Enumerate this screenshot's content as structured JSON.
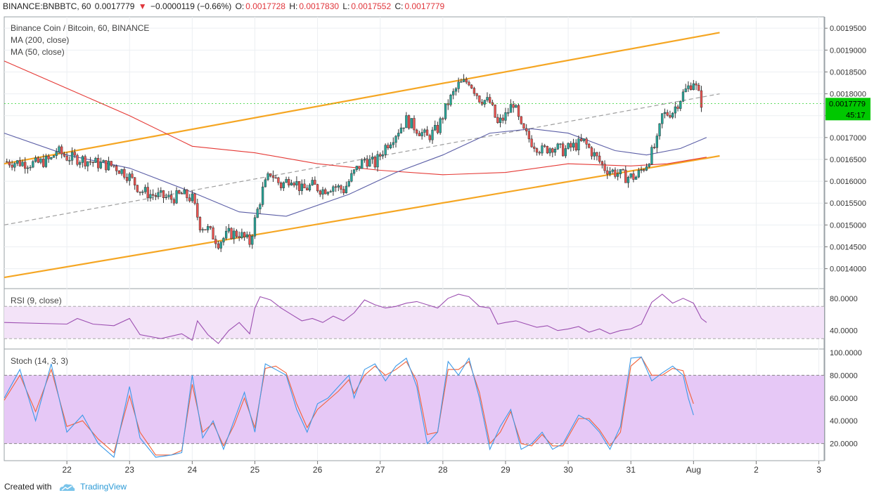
{
  "header": {
    "symbol": "BINANCE:BNBBTC, 60",
    "last": "0.0017779",
    "change": "−0.0000119 (−0.66%)",
    "o_label": "O:",
    "o": "0.0017728",
    "h_label": "H:",
    "h": "0.0017830",
    "l_label": "L:",
    "l": "0.0017552",
    "c_label": "C:",
    "c": "0.0017779"
  },
  "legend": {
    "title": "Binance Coin / Bitcoin, 60, BINANCE",
    "ma200": "MA (200, close)",
    "ma50": "MA (50, close)",
    "rsi": "RSI (9, close)",
    "stoch": "Stoch (14, 3, 3)"
  },
  "price_badge": {
    "value": "0.0017779",
    "countdown": "45:17"
  },
  "footer": {
    "created": "Created with",
    "brand": "TradingView"
  },
  "colors": {
    "up": "#26a69a",
    "down": "#ef5350",
    "ma200": "#e53935",
    "ma50": "#5b5ea6",
    "channel": "#f5a623",
    "rsi": "#9c4fb1",
    "stoch_k": "#3d9ae8",
    "stoch_d": "#f2623a",
    "last_price": "#00c800"
  },
  "chart_data": {
    "type": "candlestick",
    "x_ticks": [
      {
        "label": "22",
        "t": 0
      },
      {
        "label": "23",
        "t": 24
      },
      {
        "label": "24",
        "t": 48
      },
      {
        "label": "25",
        "t": 72
      },
      {
        "label": "26",
        "t": 96
      },
      {
        "label": "27",
        "t": 120
      },
      {
        "label": "28",
        "t": 144
      },
      {
        "label": "29",
        "t": 168
      },
      {
        "label": "30",
        "t": 192
      },
      {
        "label": "31",
        "t": 216
      },
      {
        "label": "Aug",
        "t": 240
      },
      {
        "label": "2",
        "t": 264
      },
      {
        "label": "3",
        "t": 288
      }
    ],
    "x_range": [
      -24,
      290
    ],
    "price": {
      "ylim": [
        0.001356,
        0.001976
      ],
      "ticks": [
        "0.0014000",
        "0.0014500",
        "0.0015000",
        "0.0015500",
        "0.0016000",
        "0.0016500",
        "0.0017000",
        "0.0017500",
        "0.0018000",
        "0.0018500",
        "0.0019000",
        "0.0019500"
      ],
      "last": 0.0017779,
      "close_path": [
        [
          -24,
          0.001645
        ],
        [
          -12,
          0.00164
        ],
        [
          -6,
          0.00165
        ],
        [
          -4,
          0.00167
        ],
        [
          0,
          0.001655
        ],
        [
          6,
          0.00165
        ],
        [
          12,
          0.00164
        ],
        [
          18,
          0.001635
        ],
        [
          22,
          0.00162
        ],
        [
          24,
          0.00161
        ],
        [
          28,
          0.00158
        ],
        [
          32,
          0.00157
        ],
        [
          36,
          0.001565
        ],
        [
          40,
          0.00156
        ],
        [
          44,
          0.00157
        ],
        [
          48,
          0.00156
        ],
        [
          51,
          0.0015
        ],
        [
          54,
          0.00149
        ],
        [
          58,
          0.00146
        ],
        [
          62,
          0.00148
        ],
        [
          66,
          0.00148
        ],
        [
          70,
          0.00146
        ],
        [
          72,
          0.00151
        ],
        [
          75,
          0.00158
        ],
        [
          78,
          0.00162
        ],
        [
          82,
          0.00159
        ],
        [
          86,
          0.00161
        ],
        [
          90,
          0.00158
        ],
        [
          94,
          0.00159
        ],
        [
          98,
          0.00158
        ],
        [
          102,
          0.00159
        ],
        [
          106,
          0.00158
        ],
        [
          110,
          0.00162
        ],
        [
          114,
          0.00165
        ],
        [
          118,
          0.00164
        ],
        [
          122,
          0.00168
        ],
        [
          126,
          0.00171
        ],
        [
          130,
          0.00174
        ],
        [
          134,
          0.00172
        ],
        [
          138,
          0.0017
        ],
        [
          142,
          0.00172
        ],
        [
          146,
          0.00178
        ],
        [
          150,
          0.00182
        ],
        [
          154,
          0.00183
        ],
        [
          158,
          0.00179
        ],
        [
          162,
          0.00178
        ],
        [
          165,
          0.00173
        ],
        [
          168,
          0.00175
        ],
        [
          171,
          0.00178
        ],
        [
          174,
          0.00172
        ],
        [
          178,
          0.00169
        ],
        [
          182,
          0.00167
        ],
        [
          186,
          0.00168
        ],
        [
          190,
          0.00167
        ],
        [
          194,
          0.00168
        ],
        [
          198,
          0.00169
        ],
        [
          202,
          0.00166
        ],
        [
          206,
          0.00163
        ],
        [
          210,
          0.00162
        ],
        [
          214,
          0.00161
        ],
        [
          218,
          0.00161
        ],
        [
          222,
          0.00164
        ],
        [
          226,
          0.00169
        ],
        [
          228,
          0.00175
        ],
        [
          232,
          0.00176
        ],
        [
          236,
          0.0018
        ],
        [
          240,
          0.00183
        ],
        [
          243,
          0.00178
        ]
      ],
      "ma200": [
        [
          -24,
          0.001875
        ],
        [
          24,
          0.00175
        ],
        [
          48,
          0.00168
        ],
        [
          72,
          0.001665
        ],
        [
          96,
          0.00164
        ],
        [
          120,
          0.001625
        ],
        [
          144,
          0.001615
        ],
        [
          168,
          0.00162
        ],
        [
          192,
          0.00164
        ],
        [
          216,
          0.001635
        ],
        [
          230,
          0.00164
        ],
        [
          245,
          0.001655
        ]
      ],
      "ma50": [
        [
          -24,
          0.00171
        ],
        [
          0,
          0.00166
        ],
        [
          24,
          0.00163
        ],
        [
          48,
          0.001575
        ],
        [
          66,
          0.00153
        ],
        [
          84,
          0.00152
        ],
        [
          108,
          0.00157
        ],
        [
          126,
          0.00162
        ],
        [
          144,
          0.00166
        ],
        [
          162,
          0.00171
        ],
        [
          178,
          0.00172
        ],
        [
          192,
          0.00171
        ],
        [
          210,
          0.00167
        ],
        [
          222,
          0.00166
        ],
        [
          235,
          0.001675
        ],
        [
          245,
          0.0017
        ]
      ]
    },
    "channel": {
      "upper": [
        [
          -24,
          0.00164
        ],
        [
          250,
          0.00194
        ]
      ],
      "lower": [
        [
          -24,
          0.00138
        ],
        [
          250,
          0.001658
        ]
      ],
      "mid": [
        [
          -24,
          0.0015
        ],
        [
          250,
          0.0018
        ]
      ]
    },
    "rsi": {
      "ylim": [
        18,
        92
      ],
      "ticks": [
        "40.0000",
        "80.0000"
      ],
      "band": [
        30,
        70
      ],
      "values": [
        [
          -24,
          50
        ],
        [
          0,
          48
        ],
        [
          4,
          55
        ],
        [
          10,
          48
        ],
        [
          18,
          46
        ],
        [
          24,
          55
        ],
        [
          28,
          35
        ],
        [
          36,
          30
        ],
        [
          44,
          36
        ],
        [
          48,
          28
        ],
        [
          50,
          52
        ],
        [
          54,
          35
        ],
        [
          58,
          24
        ],
        [
          62,
          40
        ],
        [
          66,
          50
        ],
        [
          70,
          36
        ],
        [
          72,
          68
        ],
        [
          74,
          82
        ],
        [
          78,
          78
        ],
        [
          82,
          68
        ],
        [
          86,
          60
        ],
        [
          90,
          52
        ],
        [
          94,
          55
        ],
        [
          98,
          50
        ],
        [
          102,
          58
        ],
        [
          106,
          52
        ],
        [
          110,
          62
        ],
        [
          114,
          78
        ],
        [
          118,
          72
        ],
        [
          122,
          68
        ],
        [
          126,
          70
        ],
        [
          130,
          74
        ],
        [
          134,
          76
        ],
        [
          138,
          72
        ],
        [
          142,
          68
        ],
        [
          146,
          80
        ],
        [
          150,
          85
        ],
        [
          154,
          82
        ],
        [
          158,
          70
        ],
        [
          162,
          68
        ],
        [
          165,
          48
        ],
        [
          168,
          50
        ],
        [
          172,
          52
        ],
        [
          176,
          48
        ],
        [
          180,
          44
        ],
        [
          184,
          46
        ],
        [
          188,
          40
        ],
        [
          192,
          42
        ],
        [
          196,
          45
        ],
        [
          200,
          38
        ],
        [
          204,
          42
        ],
        [
          208,
          36
        ],
        [
          212,
          40
        ],
        [
          216,
          42
        ],
        [
          220,
          48
        ],
        [
          224,
          75
        ],
        [
          228,
          85
        ],
        [
          232,
          74
        ],
        [
          236,
          80
        ],
        [
          240,
          74
        ],
        [
          243,
          55
        ],
        [
          245,
          50
        ]
      ]
    },
    "stoch": {
      "ylim": [
        5,
        103
      ],
      "ticks": [
        "20.0000",
        "40.0000",
        "60.0000",
        "80.0000",
        "100.0000"
      ],
      "band": [
        20,
        80
      ],
      "k": [
        [
          -24,
          60
        ],
        [
          -18,
          85
        ],
        [
          -12,
          40
        ],
        [
          -6,
          90
        ],
        [
          0,
          30
        ],
        [
          6,
          45
        ],
        [
          12,
          20
        ],
        [
          18,
          8
        ],
        [
          24,
          70
        ],
        [
          28,
          25
        ],
        [
          34,
          8
        ],
        [
          40,
          10
        ],
        [
          44,
          12
        ],
        [
          48,
          80
        ],
        [
          52,
          25
        ],
        [
          56,
          40
        ],
        [
          60,
          15
        ],
        [
          64,
          40
        ],
        [
          68,
          65
        ],
        [
          72,
          30
        ],
        [
          76,
          90
        ],
        [
          80,
          85
        ],
        [
          84,
          80
        ],
        [
          88,
          50
        ],
        [
          92,
          30
        ],
        [
          96,
          55
        ],
        [
          100,
          60
        ],
        [
          104,
          70
        ],
        [
          108,
          80
        ],
        [
          110,
          60
        ],
        [
          114,
          85
        ],
        [
          118,
          90
        ],
        [
          122,
          75
        ],
        [
          126,
          88
        ],
        [
          130,
          95
        ],
        [
          134,
          70
        ],
        [
          138,
          20
        ],
        [
          142,
          30
        ],
        [
          146,
          92
        ],
        [
          150,
          80
        ],
        [
          154,
          95
        ],
        [
          158,
          60
        ],
        [
          162,
          15
        ],
        [
          166,
          35
        ],
        [
          170,
          50
        ],
        [
          174,
          15
        ],
        [
          178,
          20
        ],
        [
          182,
          30
        ],
        [
          186,
          15
        ],
        [
          190,
          20
        ],
        [
          196,
          45
        ],
        [
          200,
          40
        ],
        [
          204,
          30
        ],
        [
          208,
          15
        ],
        [
          212,
          35
        ],
        [
          216,
          95
        ],
        [
          220,
          96
        ],
        [
          224,
          75
        ],
        [
          228,
          82
        ],
        [
          232,
          88
        ],
        [
          236,
          80
        ],
        [
          238,
          60
        ],
        [
          240,
          45
        ]
      ],
      "d": [
        [
          -24,
          58
        ],
        [
          -18,
          80
        ],
        [
          -12,
          48
        ],
        [
          -6,
          85
        ],
        [
          0,
          35
        ],
        [
          6,
          40
        ],
        [
          12,
          24
        ],
        [
          18,
          12
        ],
        [
          24,
          62
        ],
        [
          28,
          30
        ],
        [
          34,
          10
        ],
        [
          40,
          10
        ],
        [
          44,
          14
        ],
        [
          48,
          72
        ],
        [
          52,
          30
        ],
        [
          56,
          38
        ],
        [
          60,
          18
        ],
        [
          64,
          36
        ],
        [
          68,
          60
        ],
        [
          72,
          34
        ],
        [
          76,
          86
        ],
        [
          80,
          88
        ],
        [
          84,
          82
        ],
        [
          88,
          55
        ],
        [
          92,
          34
        ],
        [
          96,
          50
        ],
        [
          100,
          58
        ],
        [
          104,
          66
        ],
        [
          108,
          76
        ],
        [
          110,
          64
        ],
        [
          114,
          80
        ],
        [
          118,
          88
        ],
        [
          122,
          80
        ],
        [
          126,
          85
        ],
        [
          130,
          92
        ],
        [
          134,
          75
        ],
        [
          138,
          28
        ],
        [
          142,
          30
        ],
        [
          146,
          85
        ],
        [
          150,
          85
        ],
        [
          154,
          92
        ],
        [
          158,
          65
        ],
        [
          162,
          20
        ],
        [
          166,
          30
        ],
        [
          170,
          48
        ],
        [
          174,
          20
        ],
        [
          178,
          18
        ],
        [
          182,
          28
        ],
        [
          186,
          18
        ],
        [
          190,
          18
        ],
        [
          196,
          42
        ],
        [
          200,
          42
        ],
        [
          204,
          32
        ],
        [
          208,
          18
        ],
        [
          212,
          30
        ],
        [
          216,
          88
        ],
        [
          220,
          96
        ],
        [
          224,
          80
        ],
        [
          228,
          80
        ],
        [
          232,
          86
        ],
        [
          236,
          84
        ],
        [
          238,
          68
        ],
        [
          240,
          55
        ]
      ]
    }
  }
}
